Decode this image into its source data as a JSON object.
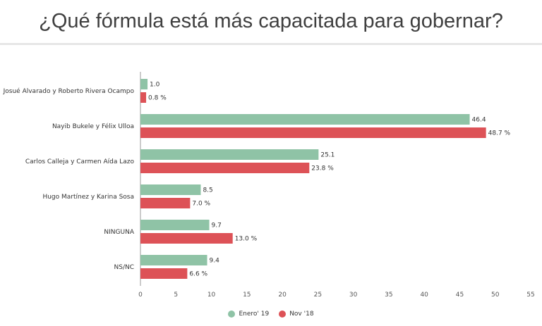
{
  "title": "¿Qué fórmula está más capacitada para gobernar?",
  "colors": {
    "series1": "#8fc3a6",
    "series2": "#dd5257",
    "axis": "#999999"
  },
  "chart_data": {
    "type": "bar",
    "orientation": "horizontal",
    "categories": [
      "Josué Alvarado y Roberto Rivera Ocampo",
      "Nayib Bukele y Félix Ulloa",
      "Carlos Calleja y Carmen Aída Lazo",
      "Hugo Martínez y Karina Sosa",
      "NINGUNA",
      "NS/NC"
    ],
    "series": [
      {
        "name": "Enero' 19",
        "values": [
          1.0,
          46.4,
          25.1,
          8.5,
          9.7,
          9.4
        ],
        "labels": [
          "1.0",
          "46.4",
          "25.1",
          "8.5",
          "9.7",
          "9.4"
        ]
      },
      {
        "name": "Nov '18",
        "values": [
          0.8,
          48.7,
          23.8,
          7.0,
          13.0,
          6.6
        ],
        "labels": [
          "0.8 %",
          "48.7 %",
          "23.8 %",
          "7.0 %",
          "13.0 %",
          "6.6 %"
        ]
      }
    ],
    "xlim": [
      0,
      55
    ],
    "ticks": [
      0,
      5,
      10,
      15,
      20,
      25,
      30,
      35,
      40,
      45,
      50,
      55
    ],
    "legend_position": "bottom",
    "grid": false
  }
}
